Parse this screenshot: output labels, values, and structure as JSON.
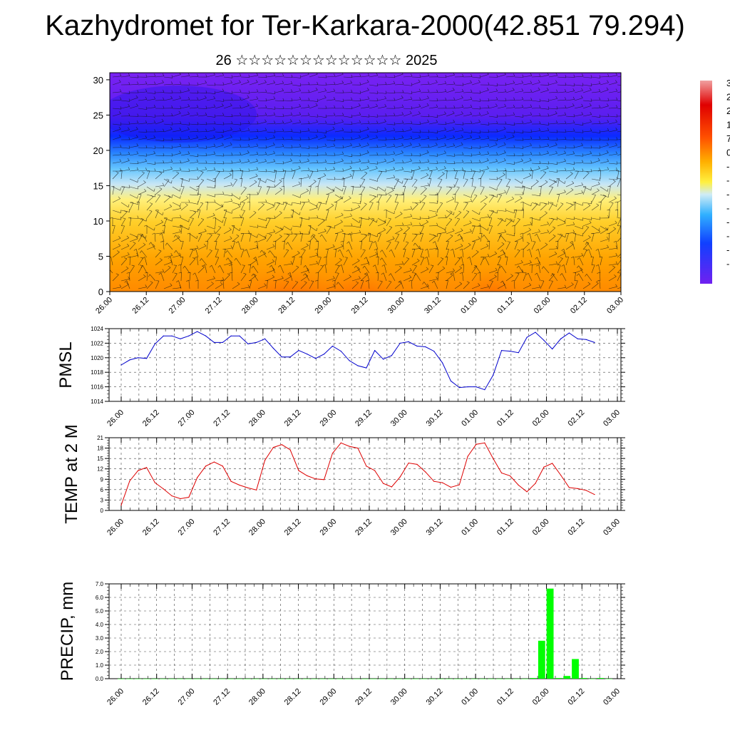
{
  "header": {
    "title": "Kazhydromet for Ter-Karkara-2000(42.851 79.294)",
    "subtitle": "26 ☆☆☆☆☆☆☆☆☆☆☆☆☆ 2025"
  },
  "chart_data": [
    {
      "type": "heatmap",
      "name": "cross-section",
      "x_ticks": [
        "26.00",
        "26.12",
        "27.00",
        "27.12",
        "28.00",
        "28.12",
        "29.00",
        "29.12",
        "30.00",
        "30.12",
        "01.00",
        "01.12",
        "02.00",
        "02.12",
        "03.00"
      ],
      "y_ticks": [
        0,
        5,
        10,
        15,
        20,
        25,
        30
      ],
      "ylim": [
        0,
        31
      ],
      "colorbar_labels": [
        "3",
        "2",
        "2",
        "1",
        "7",
        "0",
        "-",
        "-",
        "-",
        "-",
        "-",
        "-",
        "-",
        "-"
      ],
      "colors": {
        "high": "#d40000",
        "mid": "#ffe000",
        "low": "#7a1cf0",
        "pale": "#c8e6f5"
      },
      "overlay": "wind-barbs"
    },
    {
      "type": "line",
      "name": "pmsl",
      "ylabel": "PMSL",
      "ylim": [
        1014,
        1024
      ],
      "y_ticks": [
        1014,
        1016,
        1018,
        1020,
        1022,
        1024
      ],
      "x_ticks": [
        "26.00",
        "26.12",
        "27.00",
        "27.12",
        "28.00",
        "28.12",
        "29.00",
        "29.12",
        "30.00",
        "30.12",
        "01.00",
        "01.12",
        "02.00",
        "02.12",
        "03.00"
      ],
      "color": "#0000cc",
      "values": [
        1019.0,
        1019.7,
        1020.0,
        1019.9,
        1021.9,
        1023.0,
        1023.0,
        1022.6,
        1023.0,
        1023.6,
        1023.0,
        1022.1,
        1022.1,
        1023.0,
        1023.0,
        1021.9,
        1022.1,
        1022.6,
        1021.3,
        1020.1,
        1020.1,
        1021.0,
        1020.5,
        1019.9,
        1020.5,
        1021.6,
        1020.9,
        1019.6,
        1018.9,
        1018.6,
        1021.0,
        1019.8,
        1020.3,
        1022.0,
        1022.2,
        1021.6,
        1021.5,
        1020.9,
        1019.3,
        1016.8,
        1015.9,
        1016.0,
        1016.0,
        1015.6,
        1017.6,
        1021.0,
        1020.9,
        1020.7,
        1022.8,
        1023.5,
        1022.4,
        1021.2,
        1022.6,
        1023.4,
        1022.6,
        1022.5,
        1022.1
      ]
    },
    {
      "type": "line",
      "name": "temp2m",
      "ylabel": "TEMP at 2 M",
      "ylim": [
        0,
        21
      ],
      "y_ticks": [
        0,
        3,
        6,
        9,
        12,
        15,
        18,
        21
      ],
      "x_ticks": [
        "26.00",
        "26.12",
        "27.00",
        "27.12",
        "28.00",
        "28.12",
        "29.00",
        "29.12",
        "30.00",
        "30.12",
        "01.00",
        "01.12",
        "02.00",
        "02.12",
        "03.00"
      ],
      "color": "#dd0000",
      "values": [
        1.5,
        8.5,
        11.5,
        12.4,
        8.0,
        6.2,
        4.2,
        3.4,
        3.8,
        9.5,
        12.8,
        14.0,
        12.8,
        8.4,
        7.3,
        6.5,
        5.9,
        14.5,
        18.2,
        19.0,
        17.5,
        11.5,
        10.0,
        9.1,
        8.9,
        16.5,
        19.5,
        18.5,
        18.0,
        12.8,
        11.5,
        7.8,
        6.8,
        9.7,
        13.7,
        13.3,
        11.1,
        8.4,
        8.0,
        6.7,
        7.4,
        15.6,
        19.1,
        19.5,
        15.0,
        10.8,
        10.0,
        7.3,
        5.4,
        7.8,
        12.5,
        13.6,
        10.2,
        6.6,
        6.3,
        5.8,
        4.6
      ]
    },
    {
      "type": "bar",
      "name": "precip",
      "ylabel": "PRECIP, mm",
      "ylim": [
        0,
        7
      ],
      "y_ticks": [
        "0.0",
        "1.0",
        "2.0",
        "3.0",
        "4.0",
        "5.0",
        "6.0",
        "7.0"
      ],
      "x_ticks": [
        "26.00",
        "26.12",
        "27.00",
        "27.12",
        "28.00",
        "28.12",
        "29.00",
        "29.12",
        "30.00",
        "30.12",
        "01.00",
        "01.12",
        "02.00",
        "02.12",
        "03.00"
      ],
      "color": "#00ff00",
      "values": [
        0,
        0,
        0,
        0,
        0,
        0,
        0,
        0,
        0,
        0,
        0,
        0,
        0,
        0,
        0,
        0,
        0,
        0,
        0,
        0,
        0,
        0,
        0,
        0,
        0,
        0,
        0,
        0,
        0,
        0,
        0,
        0,
        0,
        0,
        0,
        0,
        0,
        0,
        0,
        0,
        0,
        0,
        0,
        0,
        0,
        0,
        0,
        0,
        0,
        0.05,
        2.8,
        6.65,
        0.05,
        0.2,
        1.45,
        0.05,
        0,
        0.05,
        0
      ]
    }
  ]
}
